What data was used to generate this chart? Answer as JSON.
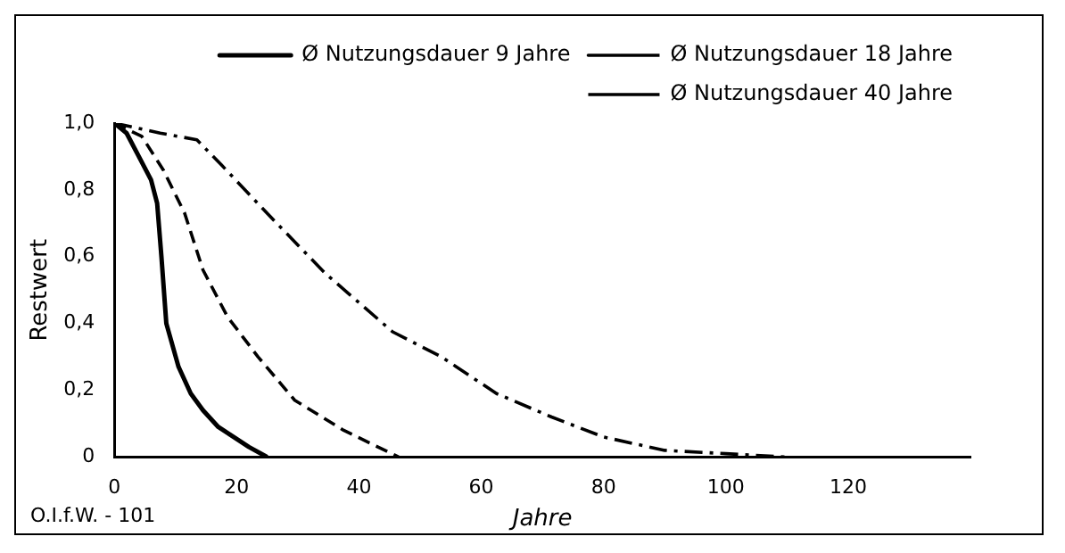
{
  "chart_data": {
    "type": "line",
    "ylabel": "Restwert",
    "xlabel": "Jahre",
    "annotations": [
      "O.I.f.W. - 101"
    ],
    "xlim": [
      0,
      140
    ],
    "xticks": [
      0,
      20,
      40,
      60,
      80,
      100,
      120
    ],
    "ylim": [
      0,
      1.0
    ],
    "yticks": [
      {
        "value": 0,
        "label": "0"
      },
      {
        "value": 0.2,
        "label": "0,2"
      },
      {
        "value": 0.4,
        "label": "0,4"
      },
      {
        "value": 0.6,
        "label": "0,6"
      },
      {
        "value": 0.8,
        "label": "0,8"
      },
      {
        "value": 1.0,
        "label": "1,0"
      }
    ],
    "grid": false,
    "legend": "top right",
    "marker": "none",
    "series": [
      {
        "name": "Ø Nutzungsdauer 9 Jahre",
        "color": "#000000",
        "line_style": "solid",
        "x": [
          0,
          2,
          4,
          6,
          7,
          7.7,
          8.5,
          10.5,
          12.5,
          14.5,
          17,
          19.5,
          22,
          25
        ],
        "values": [
          1.0,
          0.97,
          0.9,
          0.83,
          0.76,
          0.6,
          0.4,
          0.27,
          0.19,
          0.14,
          0.09,
          0.06,
          0.03,
          0
        ]
      },
      {
        "name": "Ø Nutzungsdauer 18 Jahre",
        "color": "#000000",
        "line_style": "dashed",
        "x": [
          0,
          4.5,
          8,
          11.5,
          14.5,
          18.5,
          23.5,
          29.5,
          37.5,
          46.5
        ],
        "values": [
          1.0,
          0.96,
          0.86,
          0.73,
          0.56,
          0.42,
          0.3,
          0.17,
          0.08,
          0
        ]
      },
      {
        "name": "Ø Nutzungsdauer 40 Jahre",
        "color": "#000000",
        "line_style": "dashed",
        "x": [
          0,
          7.5,
          13.5,
          17.5,
          25.5,
          34.5,
          45.5,
          53.5,
          62.5,
          71.5,
          80,
          90,
          100,
          110
        ],
        "values": [
          1.0,
          0.97,
          0.95,
          0.875,
          0.72,
          0.55,
          0.375,
          0.3,
          0.19,
          0.12,
          0.06,
          0.02,
          0.01,
          0
        ]
      }
    ]
  }
}
